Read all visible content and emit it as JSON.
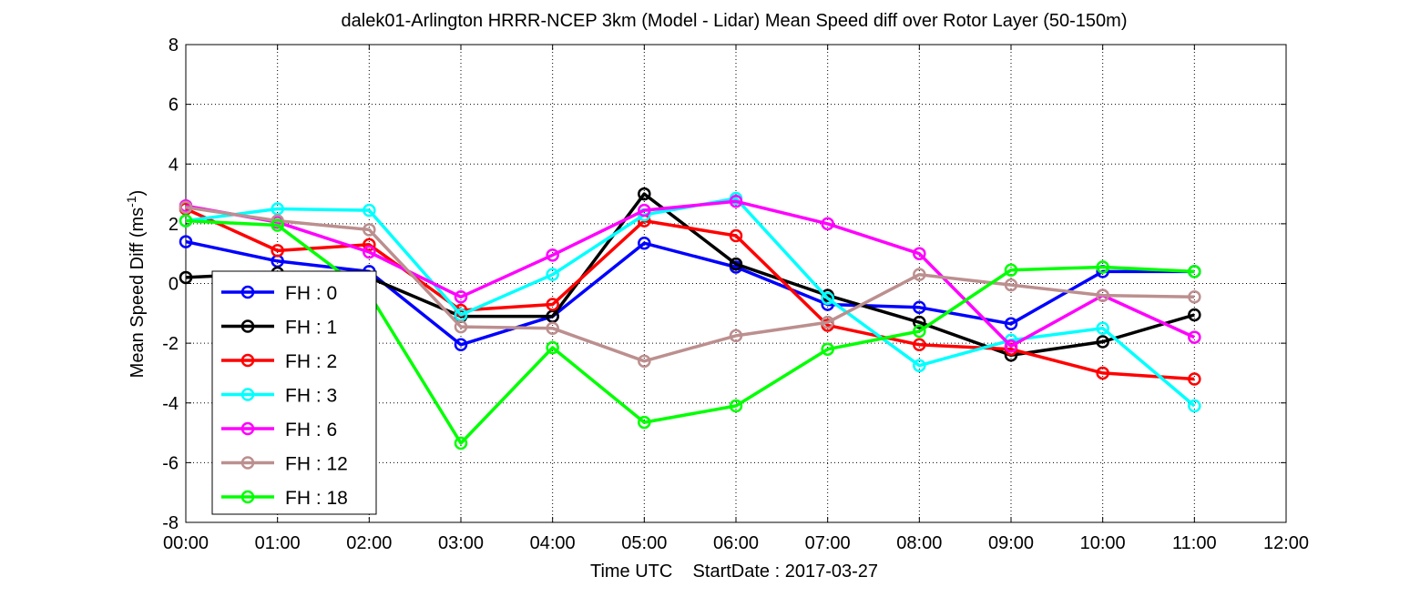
{
  "chart_data": {
    "type": "line",
    "title": "dalek01-Arlington HRRR-NCEP 3km (Model - Lidar) Mean Speed diff over Rotor Layer (50-150m)",
    "xlabel": "Time UTC    StartDate : 2017-03-27",
    "ylabel_main": "Mean Speed Diff (ms",
    "ylabel_sup": "-1",
    "ylabel_close": ")",
    "xlim": [
      0,
      12
    ],
    "ylim": [
      -8,
      8
    ],
    "x_ticks": [
      0,
      1,
      2,
      3,
      4,
      5,
      6,
      7,
      8,
      9,
      10,
      11,
      12
    ],
    "x_tick_labels": [
      "00:00",
      "01:00",
      "02:00",
      "03:00",
      "04:00",
      "05:00",
      "06:00",
      "07:00",
      "08:00",
      "09:00",
      "10:00",
      "11:00",
      "12:00"
    ],
    "y_ticks": [
      -8,
      -6,
      -4,
      -2,
      0,
      2,
      4,
      6,
      8
    ],
    "y_tick_labels": [
      "-8",
      "-6",
      "-4",
      "-2",
      "0",
      "2",
      "4",
      "6",
      "8"
    ],
    "grid": true,
    "legend_position": "lower-left",
    "x": [
      0,
      1,
      2,
      3,
      4,
      5,
      6,
      7,
      8,
      9,
      10,
      11
    ],
    "series": [
      {
        "name": "FH : 0",
        "color": "#0000ff",
        "values": [
          1.4,
          0.75,
          0.4,
          -2.05,
          -1.1,
          1.35,
          0.55,
          -0.7,
          -0.8,
          -1.35,
          0.4,
          0.4
        ]
      },
      {
        "name": "FH : 1",
        "color": "#000000",
        "values": [
          0.2,
          0.35,
          0.2,
          -1.1,
          -1.1,
          3.0,
          0.65,
          -0.4,
          -1.3,
          -2.4,
          -1.95,
          -1.05
        ]
      },
      {
        "name": "FH : 2",
        "color": "#ff0000",
        "values": [
          2.5,
          1.1,
          1.3,
          -0.9,
          -0.7,
          2.1,
          1.6,
          -1.4,
          -2.05,
          -2.2,
          -3.0,
          -3.2
        ]
      },
      {
        "name": "FH : 3",
        "color": "#00ffff",
        "values": [
          2.1,
          2.5,
          2.45,
          -1.05,
          0.3,
          2.3,
          2.85,
          -0.5,
          -2.75,
          -1.9,
          -1.5,
          -4.1
        ]
      },
      {
        "name": "FH : 6",
        "color": "#ff00ff",
        "values": [
          2.6,
          2.05,
          1.05,
          -0.45,
          0.95,
          2.45,
          2.75,
          2.0,
          1.0,
          -2.1,
          -0.4,
          -1.8
        ]
      },
      {
        "name": "FH : 12",
        "color": "#bc8f8f",
        "values": [
          2.55,
          2.1,
          1.8,
          -1.45,
          -1.5,
          -2.6,
          -1.75,
          -1.3,
          0.3,
          -0.05,
          -0.4,
          -0.45
        ]
      },
      {
        "name": "FH : 18",
        "color": "#00ff00",
        "values": [
          2.1,
          1.95,
          -0.35,
          -5.35,
          -2.15,
          -4.65,
          -4.1,
          -2.2,
          -1.6,
          0.45,
          0.55,
          0.4
        ]
      }
    ]
  }
}
